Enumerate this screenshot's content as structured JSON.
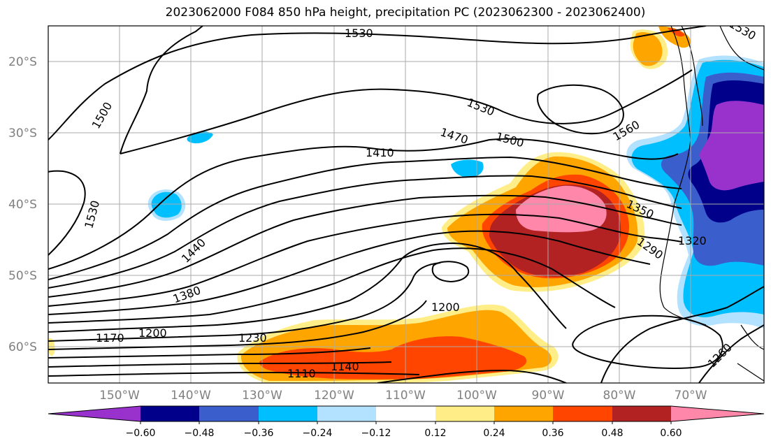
{
  "title": "2023062000 F084 850 hPa height, precipitation PC (2023062300 - 2023062400)",
  "map": {
    "lat_labels": [
      "20°S",
      "30°S",
      "40°S",
      "50°S",
      "60°S"
    ],
    "lon_labels": [
      "150°W",
      "140°W",
      "130°W",
      "120°W",
      "110°W",
      "100°W",
      "90°W",
      "80°W",
      "70°W"
    ],
    "contour_labels": [
      "1530",
      "1500",
      "1530",
      "1560",
      "1470",
      "1500",
      "1410",
      "1530",
      "1440",
      "1350",
      "1290",
      "1320",
      "1380",
      "1200",
      "1170",
      "1200",
      "1230",
      "1140",
      "1110",
      "1260",
      "1530"
    ],
    "shading_colors": {
      "strong_neg": "#9932CC",
      "neg_060": "#00008B",
      "neg_048": "#3A5FCD",
      "neg_036": "#00BFFF",
      "neg_024": "#B2E2FF",
      "pos_012": "#FFEE88",
      "pos_024": "#FFA500",
      "pos_036": "#FF4500",
      "pos_048": "#B22222",
      "pos_060": "#FF88AA"
    }
  },
  "colorbar": {
    "tick_labels": [
      "−0.60",
      "−0.48",
      "−0.36",
      "−0.24",
      "−0.12",
      "0.12",
      "0.24",
      "0.36",
      "0.48",
      "0.60"
    ],
    "colors": [
      "#9932CC",
      "#00008B",
      "#3A5FCD",
      "#00BFFF",
      "#B2E2FF",
      "#FFFFFF",
      "#FFEE88",
      "#FFA500",
      "#FF4500",
      "#B22222",
      "#FF88AA"
    ]
  }
}
